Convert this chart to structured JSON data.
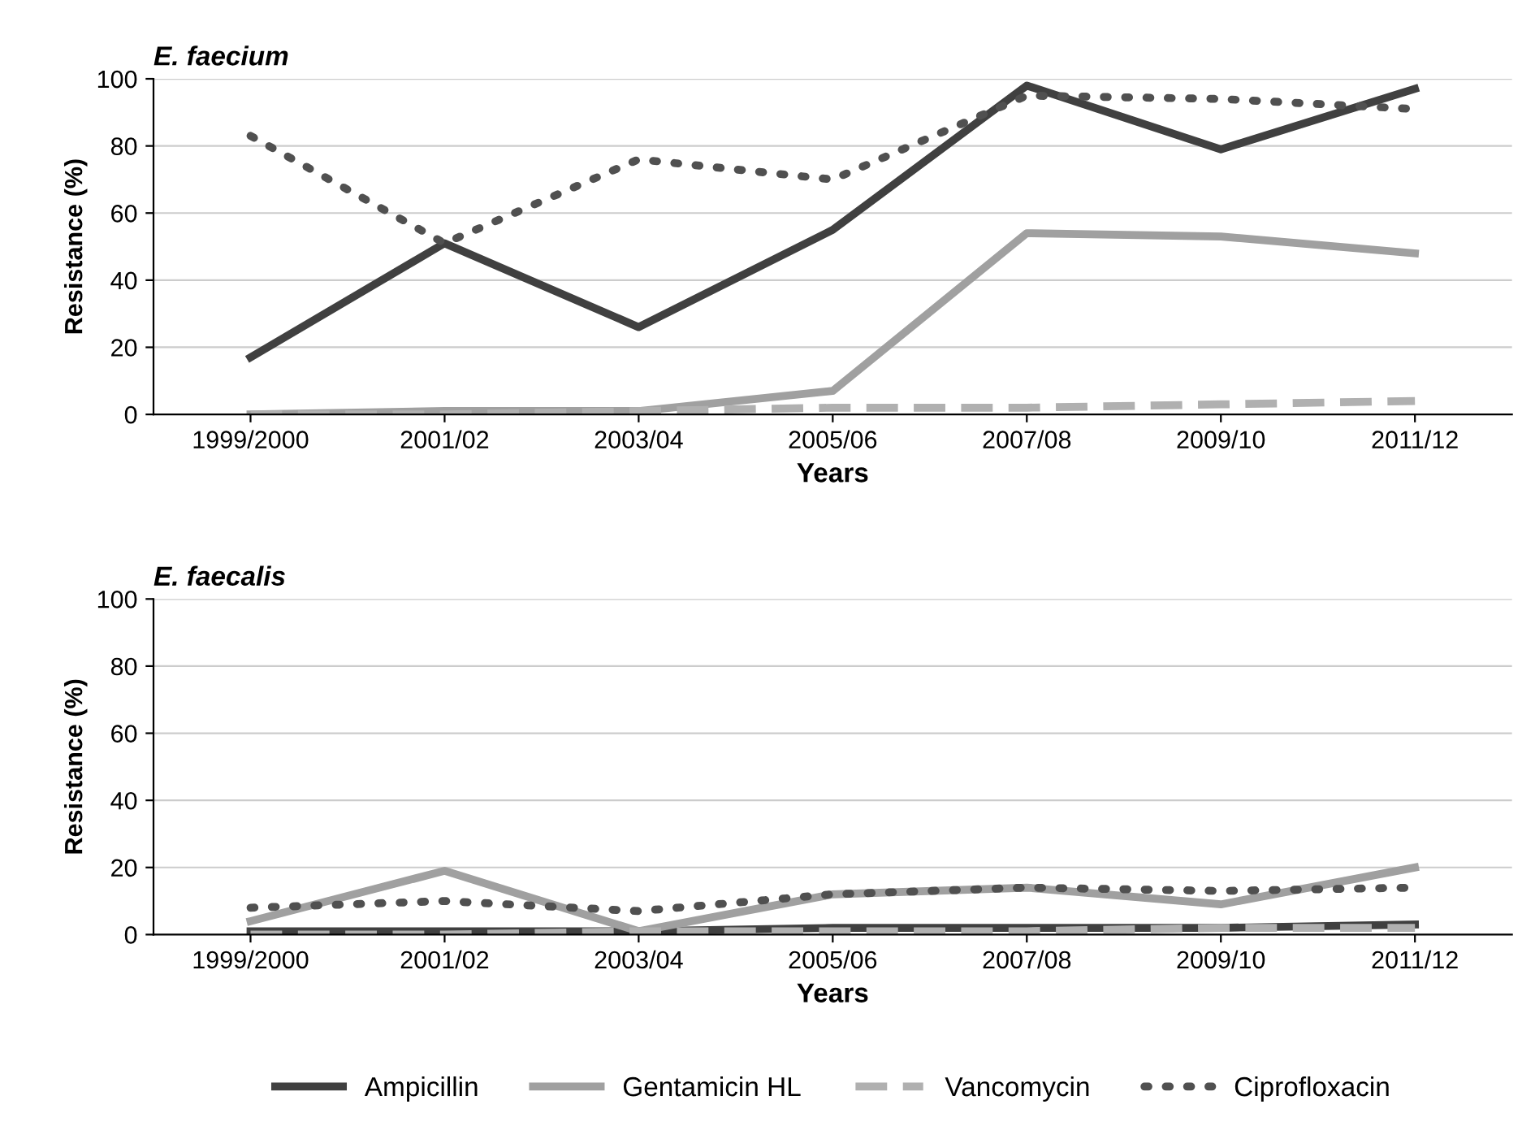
{
  "chart_data": [
    {
      "type": "line",
      "title": "E. faecium",
      "xlabel": "Years",
      "ylabel": "Resistance (%)",
      "categories": [
        "1999/2000",
        "2001/02",
        "2003/04",
        "2005/06",
        "2007/08",
        "2009/10",
        "2011/12"
      ],
      "ylim": [
        0,
        100
      ],
      "yticks": [
        0,
        20,
        40,
        60,
        80,
        100
      ],
      "grid": "y",
      "legend": false,
      "series": [
        {
          "color": "#404040",
          "line_style": "solid",
          "values": [
            17,
            51,
            26,
            55,
            98,
            79,
            97
          ]
        },
        {
          "color": "#a0a0a0",
          "line_style": "solid",
          "values": [
            0,
            1,
            1,
            7,
            54,
            53,
            48
          ]
        },
        {
          "color": "#b0b0b0",
          "line_style": "dashed",
          "values": [
            0,
            0,
            1,
            2,
            2,
            3,
            4
          ]
        },
        {
          "color": "#505050",
          "line_style": "dotted",
          "values": [
            83,
            51,
            76,
            70,
            95,
            94,
            91
          ]
        }
      ]
    },
    {
      "type": "line",
      "title": "E. faecalis",
      "xlabel": "Years",
      "ylabel": "Resistance (%)",
      "categories": [
        "1999/2000",
        "2001/02",
        "2003/04",
        "2005/06",
        "2007/08",
        "2009/10",
        "2011/12"
      ],
      "ylim": [
        0,
        100
      ],
      "yticks": [
        0,
        20,
        40,
        60,
        80,
        100
      ],
      "grid": "y",
      "legend": "bottom",
      "series": [
        {
          "name": "Ampicillin",
          "color": "#404040",
          "line_style": "solid",
          "values": [
            1,
            1,
            1,
            2,
            2,
            2,
            3
          ]
        },
        {
          "name": "Gentamicin HL",
          "color": "#a0a0a0",
          "line_style": "solid",
          "values": [
            4,
            19,
            1,
            12,
            14,
            9,
            20
          ]
        },
        {
          "name": "Vancomycin",
          "color": "#b0b0b0",
          "line_style": "dashed",
          "values": [
            0,
            0,
            1,
            1,
            1,
            2,
            2
          ]
        },
        {
          "name": "Ciprofloxacin",
          "color": "#505050",
          "line_style": "dotted",
          "values": [
            8,
            10,
            7,
            12,
            14,
            13,
            14
          ]
        }
      ]
    }
  ]
}
